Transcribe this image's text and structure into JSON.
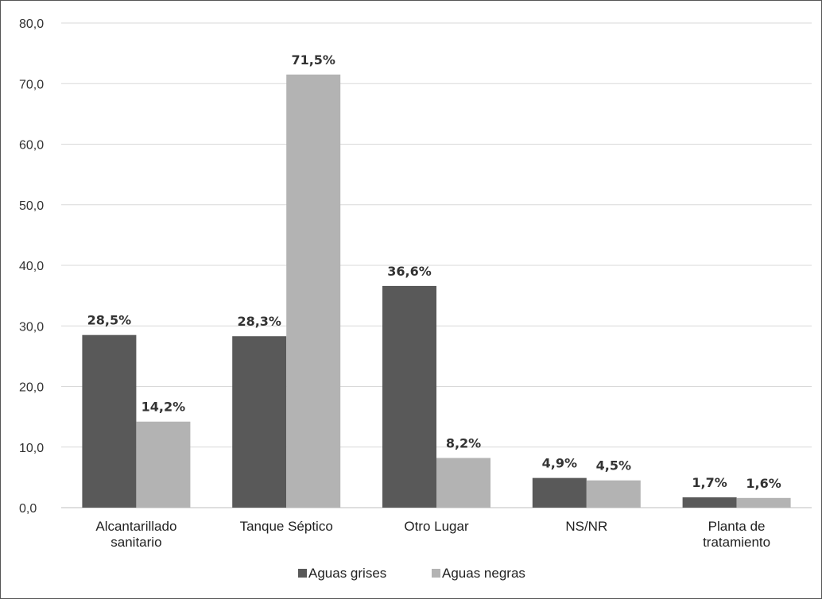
{
  "chart_data": {
    "type": "bar",
    "categories": [
      [
        "Alcantarillado",
        "sanitario"
      ],
      [
        "Tanque Séptico"
      ],
      [
        "Otro Lugar"
      ],
      [
        "NS/NR"
      ],
      [
        "Planta de",
        "tratamiento"
      ]
    ],
    "series": [
      {
        "name": "Aguas grises",
        "color": "#595959",
        "values": [
          28.5,
          28.3,
          36.6,
          4.9,
          1.7
        ],
        "labels": [
          "28,5%",
          "28,3%",
          "36,6%",
          "4,9%",
          "1,7%"
        ]
      },
      {
        "name": "Aguas negras",
        "color": "#b3b3b3",
        "values": [
          14.2,
          71.5,
          8.2,
          4.5,
          1.6
        ],
        "labels": [
          "14,2%",
          "71,5%",
          "8,2%",
          "4,5%",
          "1,6%"
        ]
      }
    ],
    "yticks": [
      "0,0",
      "10,0",
      "20,0",
      "30,0",
      "40,0",
      "50,0",
      "60,0",
      "70,0",
      "80,0"
    ],
    "ylim": [
      0,
      80
    ],
    "ytick_step": 10,
    "grid": true,
    "legend_position": "bottom",
    "title": "",
    "xlabel": "",
    "ylabel": ""
  }
}
